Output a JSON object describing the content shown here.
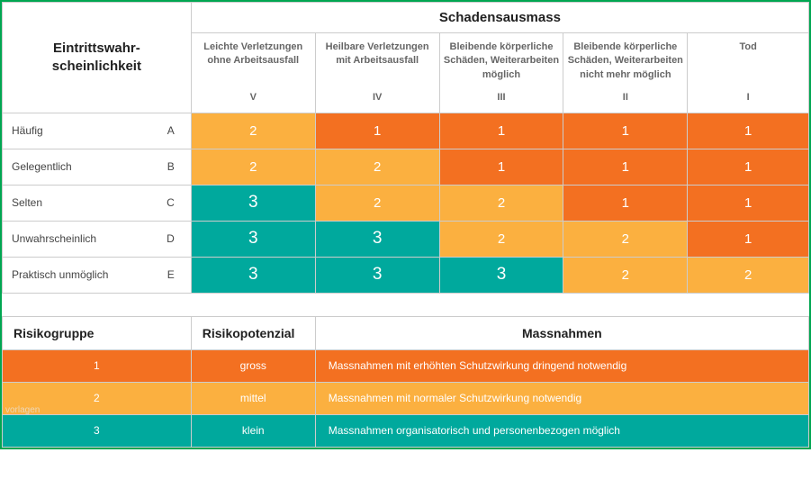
{
  "colors": {
    "orange": "#f37021",
    "yellow": "#fbb040",
    "teal": "#00a99d",
    "headerText": "#212121",
    "bodyText": "#666666",
    "border": "#cccccc",
    "outerBorder": "#00a651",
    "cellText": "#ffffff",
    "background": "#ffffff"
  },
  "typography": {
    "headerFontSize": 15,
    "descFontSize": 11,
    "labelFontSize": 12,
    "cellFontSize": 15,
    "bigCellFontSize": 19
  },
  "headers": {
    "probability": "Eintrittswahr-\nscheinlichkeit",
    "severity": "Schadensausmass"
  },
  "severity_columns": [
    {
      "label": "Leichte Verletzungen ohne Arbeitsausfall",
      "roman": "V"
    },
    {
      "label": "Heilbare Verletzungen mit Arbeitsausfall",
      "roman": "IV"
    },
    {
      "label": "Bleibende körperliche Schäden, Weiterarbeiten möglich",
      "roman": "III"
    },
    {
      "label": "Bleibende körperliche Schäden, Weiterarbeiten nicht mehr möglich",
      "roman": "II"
    },
    {
      "label": "Tod",
      "roman": "I"
    }
  ],
  "probability_rows": [
    {
      "label": "Häufig",
      "letter": "A",
      "cells": [
        {
          "v": "2",
          "c": "ye"
        },
        {
          "v": "1",
          "c": "or"
        },
        {
          "v": "1",
          "c": "or"
        },
        {
          "v": "1",
          "c": "or"
        },
        {
          "v": "1",
          "c": "or"
        }
      ]
    },
    {
      "label": "Gelegentlich",
      "letter": "B",
      "cells": [
        {
          "v": "2",
          "c": "ye"
        },
        {
          "v": "2",
          "c": "ye"
        },
        {
          "v": "1",
          "c": "or"
        },
        {
          "v": "1",
          "c": "or"
        },
        {
          "v": "1",
          "c": "or"
        }
      ]
    },
    {
      "label": "Selten",
      "letter": "C",
      "cells": [
        {
          "v": "3",
          "c": "te",
          "big": true
        },
        {
          "v": "2",
          "c": "ye"
        },
        {
          "v": "2",
          "c": "ye"
        },
        {
          "v": "1",
          "c": "or"
        },
        {
          "v": "1",
          "c": "or"
        }
      ]
    },
    {
      "label": "Unwahrscheinlich",
      "letter": "D",
      "cells": [
        {
          "v": "3",
          "c": "te",
          "big": true
        },
        {
          "v": "3",
          "c": "te",
          "big": true
        },
        {
          "v": "2",
          "c": "ye"
        },
        {
          "v": "2",
          "c": "ye"
        },
        {
          "v": "1",
          "c": "or"
        }
      ]
    },
    {
      "label": "Praktisch unmöglich",
      "letter": "E",
      "cells": [
        {
          "v": "3",
          "c": "te",
          "big": true
        },
        {
          "v": "3",
          "c": "te",
          "big": true
        },
        {
          "v": "3",
          "c": "te",
          "big": true
        },
        {
          "v": "2",
          "c": "ye"
        },
        {
          "v": "2",
          "c": "ye"
        }
      ]
    }
  ],
  "legend": {
    "headers": {
      "group": "Risikogruppe",
      "potential": "Risikopotenzial",
      "measures": "Massnahmen"
    },
    "rows": [
      {
        "group": "1",
        "potential": "gross",
        "measure": "Massnahmen mit erhöhten Schutzwirkung dringend notwendig",
        "c": "or"
      },
      {
        "group": "2",
        "potential": "mittel",
        "measure": "Massnahmen mit normaler Schutzwirkung notwendig",
        "c": "ye"
      },
      {
        "group": "3",
        "potential": "klein",
        "measure": "Massnahmen organisatorisch und personenbezogen möglich",
        "c": "te"
      }
    ]
  },
  "watermark": "vorlagen"
}
